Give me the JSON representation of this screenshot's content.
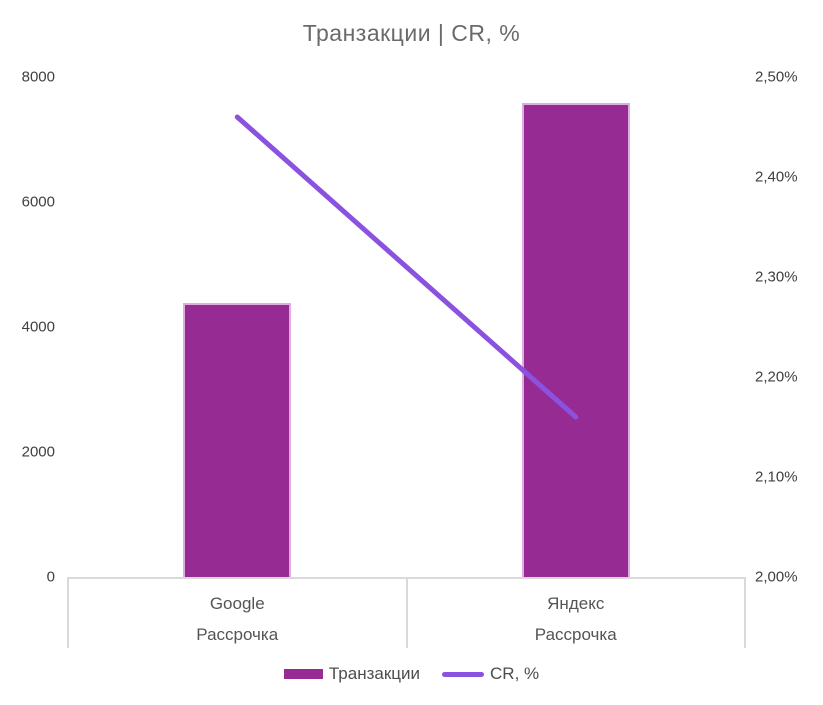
{
  "title": "Транзакции | CR, %",
  "colors": {
    "bar_fill": "#952B93",
    "bar_edge": "#DDAEDD",
    "line": "#8A52DE",
    "title_text": "#6A6A6A",
    "axis_text": "#404040",
    "category_text": "#555555",
    "legend_text": "#4D4D4D",
    "axis_border": "#D9D9D9"
  },
  "chart_data": {
    "type": "combo-bar-line",
    "title": "Транзакции | CR, %",
    "categories": [
      [
        "Google",
        "Рассрочка"
      ],
      [
        "Яндекс",
        "Рассрочка"
      ]
    ],
    "series": [
      {
        "name": "Транзакции",
        "type": "bar",
        "axis": "left",
        "values": [
          4380,
          7580
        ]
      },
      {
        "name": "CR, %",
        "type": "line",
        "axis": "right",
        "values": [
          2.46,
          2.16
        ]
      }
    ],
    "left_axis": {
      "min": 0,
      "max": 8000,
      "ticks": [
        {
          "label": "8000",
          "value": 8000
        },
        {
          "label": "6000",
          "value": 6000
        },
        {
          "label": "4000",
          "value": 4000
        },
        {
          "label": "2000",
          "value": 2000
        },
        {
          "label": "0",
          "value": 0
        }
      ]
    },
    "right_axis": {
      "min": 2.0,
      "max": 2.5,
      "ticks": [
        {
          "label": "2,50%",
          "value": 2.5
        },
        {
          "label": "2,40%",
          "value": 2.4
        },
        {
          "label": "2,30%",
          "value": 2.3
        },
        {
          "label": "2,20%",
          "value": 2.2
        },
        {
          "label": "2,10%",
          "value": 2.1
        },
        {
          "label": "2,00%",
          "value": 2.0
        }
      ]
    },
    "legend": [
      {
        "label": "Транзакции",
        "swatch": "bar"
      },
      {
        "label": "CR, %",
        "swatch": "line"
      }
    ],
    "legend_position": "bottom",
    "grid": false
  }
}
